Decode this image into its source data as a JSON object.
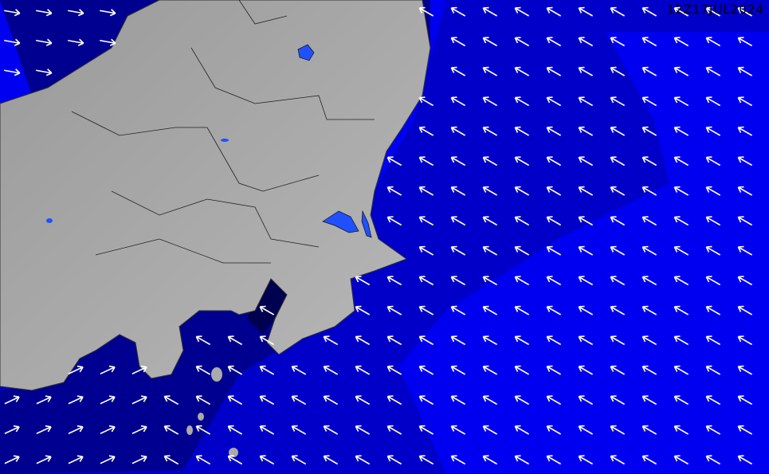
{
  "map": {
    "timestamp": "12Z17JUL2024",
    "colors": {
      "ocean_bright": "#0000f0",
      "ocean_mid": "#0000c8",
      "ocean_dark": "#000080",
      "ocean_darkest": "#000040",
      "land": "#a8a8a8",
      "lake": "#2050ff",
      "arrow": "#ffffff"
    },
    "arrow_icon": "wind-direction-arrow"
  }
}
